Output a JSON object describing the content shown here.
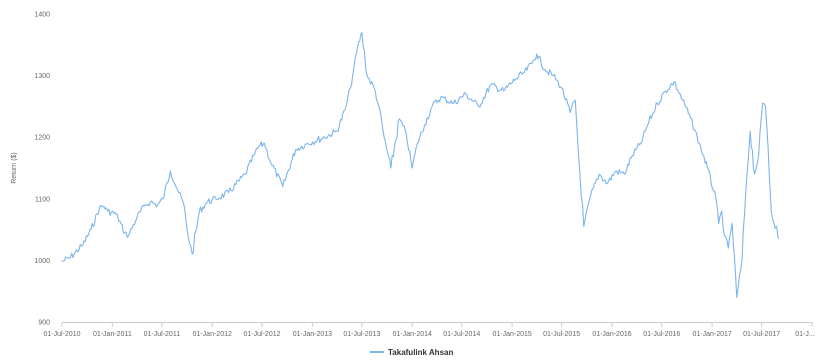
{
  "chart_data": {
    "type": "line",
    "ylabel": "Return ($)",
    "ylim": [
      900,
      1400
    ],
    "y_ticks": [
      "900",
      "1000",
      "1100",
      "1200",
      "1300",
      "1400"
    ],
    "x_tick_labels": [
      "01-Jul-2010",
      "01-Jan-2011",
      "01-Jul-2011",
      "01-Jan-2012",
      "01-Jul-2012",
      "01-Jan-2013",
      "01-Jul-2013",
      "01-Jan-2014",
      "01-Jul-2014",
      "01-Jan-2015",
      "01-Jul-2015",
      "01-Jan-2016",
      "01-Jul-2016",
      "01-Jan-2017",
      "01-Jul-2017",
      "01-J..."
    ],
    "x_tick_dates": [
      "2010-07-01",
      "2011-01-01",
      "2011-07-01",
      "2012-01-01",
      "2012-07-01",
      "2013-01-01",
      "2013-07-01",
      "2014-01-01",
      "2014-07-01",
      "2015-01-01",
      "2015-07-01",
      "2016-01-01",
      "2016-07-01",
      "2017-01-01",
      "2017-07-01",
      "2018-01-01"
    ],
    "xlim": [
      "2010-07-01",
      "2018-01-01"
    ],
    "grid": false,
    "legend_position": "bottom-center",
    "series": [
      {
        "name": "Takafulink Ahsan",
        "color": "#7cb5ec",
        "x": [
          "2010-07-01",
          "2010-08-01",
          "2010-09-15",
          "2010-10-15",
          "2010-11-15",
          "2010-12-01",
          "2010-12-15",
          "2011-01-15",
          "2011-02-15",
          "2011-03-01",
          "2011-04-01",
          "2011-05-01",
          "2011-05-20",
          "2011-06-15",
          "2011-07-05",
          "2011-08-01",
          "2011-09-01",
          "2011-09-20",
          "2011-10-01",
          "2011-10-20",
          "2011-11-15",
          "2011-12-15",
          "2012-01-15",
          "2012-03-01",
          "2012-05-01",
          "2012-06-01",
          "2012-06-20",
          "2012-07-10",
          "2012-08-01",
          "2012-09-15",
          "2012-11-01",
          "2012-12-15",
          "2013-02-15",
          "2013-04-01",
          "2013-05-01",
          "2013-05-20",
          "2013-06-01",
          "2013-06-15",
          "2013-07-01",
          "2013-07-20",
          "2013-08-15",
          "2013-09-01",
          "2013-09-20",
          "2013-10-15",
          "2013-11-15",
          "2013-12-10",
          "2014-01-01",
          "2014-01-20",
          "2014-02-15",
          "2014-03-15",
          "2014-04-15",
          "2014-06-01",
          "2014-07-15",
          "2014-09-01",
          "2014-10-15",
          "2014-12-01",
          "2015-01-15",
          "2015-02-15",
          "2015-03-15",
          "2015-04-01",
          "2015-05-01",
          "2015-06-01",
          "2015-07-01",
          "2015-08-01",
          "2015-08-20",
          "2015-09-01",
          "2015-09-20",
          "2015-10-15",
          "2015-11-15",
          "2015-12-15",
          "2016-01-15",
          "2016-02-15",
          "2016-03-15",
          "2016-04-15",
          "2016-05-15",
          "2016-06-15",
          "2016-07-15",
          "2016-08-15",
          "2016-09-15",
          "2016-10-15",
          "2016-11-15",
          "2016-12-15",
          "2017-01-15",
          "2017-01-25",
          "2017-02-05",
          "2017-02-15",
          "2017-03-01",
          "2017-03-15",
          "2017-04-01",
          "2017-04-20",
          "2017-05-05",
          "2017-05-20",
          "2017-06-05",
          "2017-06-20",
          "2017-07-05",
          "2017-07-15",
          "2017-07-25",
          "2017-08-05",
          "2017-08-15",
          "2017-08-25",
          "2017-09-01"
        ],
        "y": [
          998,
          1005,
          1025,
          1050,
          1085,
          1088,
          1080,
          1075,
          1045,
          1040,
          1070,
          1090,
          1095,
          1090,
          1100,
          1145,
          1110,
          1090,
          1050,
          1010,
          1080,
          1095,
          1100,
          1110,
          1140,
          1170,
          1185,
          1190,
          1160,
          1120,
          1180,
          1190,
          1200,
          1210,
          1245,
          1280,
          1310,
          1345,
          1370,
          1300,
          1280,
          1250,
          1200,
          1150,
          1230,
          1205,
          1150,
          1190,
          1220,
          1250,
          1265,
          1255,
          1270,
          1250,
          1285,
          1275,
          1295,
          1305,
          1320,
          1335,
          1310,
          1300,
          1280,
          1240,
          1260,
          1170,
          1055,
          1105,
          1140,
          1125,
          1145,
          1140,
          1170,
          1190,
          1225,
          1255,
          1275,
          1290,
          1260,
          1230,
          1190,
          1150,
          1100,
          1060,
          1080,
          1040,
          1020,
          1060,
          940,
          1000,
          1120,
          1210,
          1140,
          1170,
          1255,
          1250,
          1180,
          1080,
          1060,
          1055,
          1035
        ]
      }
    ]
  }
}
